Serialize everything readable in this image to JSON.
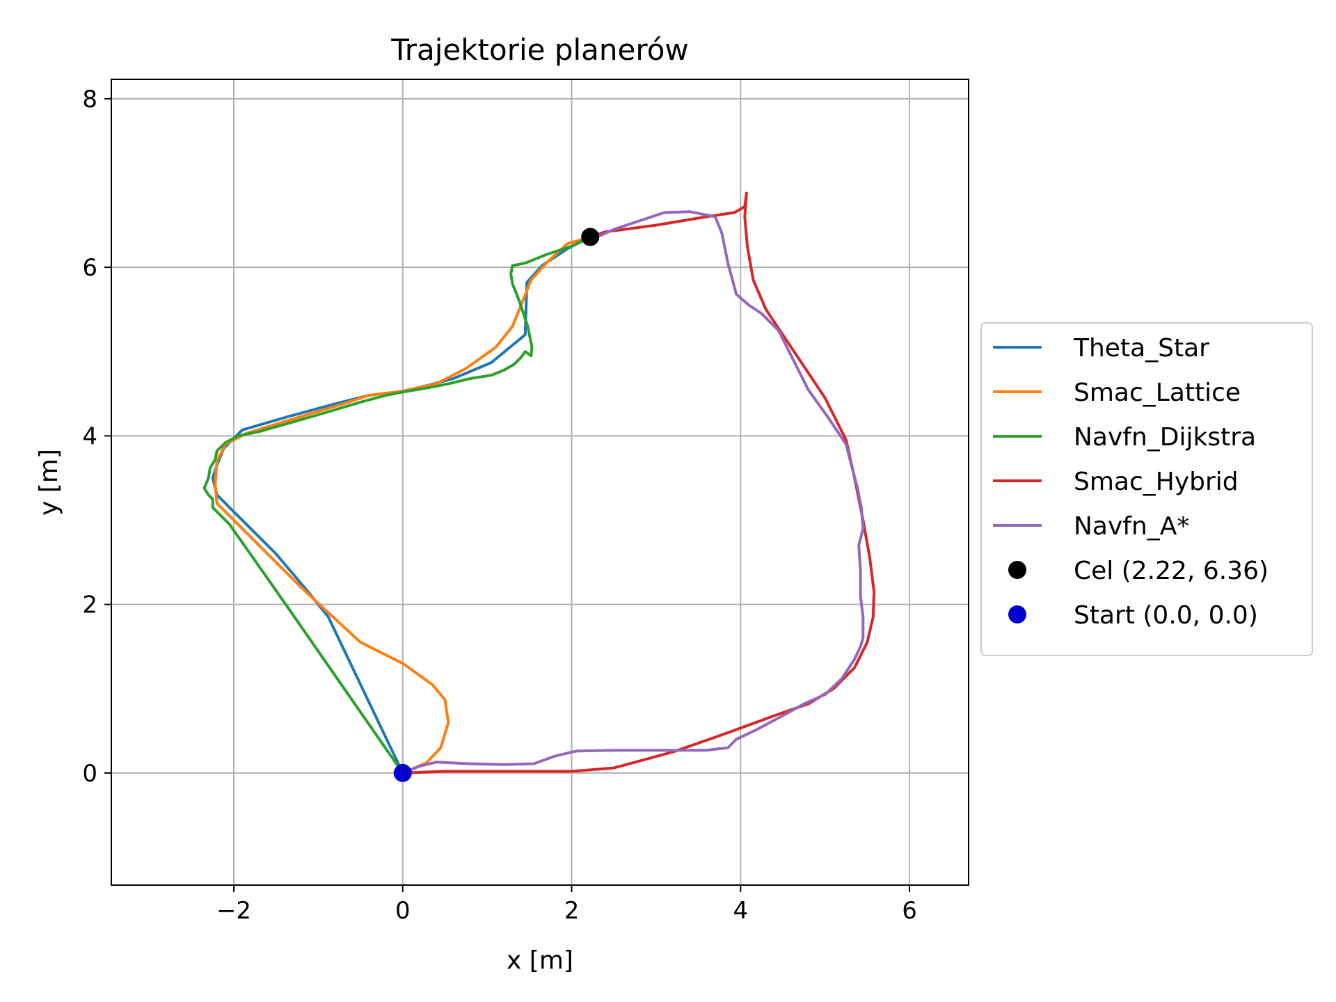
{
  "chart_data": {
    "type": "line",
    "title": "Trajektorie planerów",
    "xlabel": "x [m]",
    "ylabel": "y [m]",
    "xlim": [
      -3.45,
      6.7
    ],
    "ylim": [
      -1.33,
      8.23
    ],
    "xticks": [
      -2,
      0,
      2,
      4,
      6
    ],
    "yticks": [
      0,
      2,
      4,
      6,
      8
    ],
    "xtick_labels": [
      "−2",
      "0",
      "2",
      "4",
      "6"
    ],
    "ytick_labels": [
      "0",
      "2",
      "4",
      "6",
      "8"
    ],
    "grid": true,
    "legend_position": "outside-right",
    "series": [
      {
        "name": "Theta_Star",
        "color": "#1f77b4",
        "points": [
          [
            0.0,
            0.0
          ],
          [
            -0.88,
            1.85
          ],
          [
            -1.12,
            2.15
          ],
          [
            -1.5,
            2.6
          ],
          [
            -2.2,
            3.3
          ],
          [
            -2.25,
            3.5
          ],
          [
            -2.2,
            3.65
          ],
          [
            -2.12,
            3.85
          ],
          [
            -1.9,
            4.07
          ],
          [
            -1.35,
            4.23
          ],
          [
            -0.8,
            4.38
          ],
          [
            -0.4,
            4.48
          ],
          [
            0.0,
            4.53
          ],
          [
            0.3,
            4.6
          ],
          [
            0.6,
            4.68
          ],
          [
            1.05,
            4.87
          ],
          [
            1.45,
            5.2
          ],
          [
            1.47,
            5.82
          ],
          [
            1.65,
            6.02
          ],
          [
            1.95,
            6.22
          ],
          [
            2.22,
            6.36
          ]
        ]
      },
      {
        "name": "Smac_Lattice",
        "color": "#ff7f0e",
        "points": [
          [
            0.0,
            0.0
          ],
          [
            0.28,
            0.12
          ],
          [
            0.45,
            0.3
          ],
          [
            0.54,
            0.6
          ],
          [
            0.5,
            0.87
          ],
          [
            0.35,
            1.05
          ],
          [
            0.0,
            1.3
          ],
          [
            -0.5,
            1.55
          ],
          [
            -0.9,
            1.92
          ],
          [
            -1.2,
            2.2
          ],
          [
            -1.75,
            2.75
          ],
          [
            -2.2,
            3.2
          ],
          [
            -2.22,
            3.42
          ],
          [
            -2.2,
            3.7
          ],
          [
            -2.1,
            3.9
          ],
          [
            -1.85,
            4.03
          ],
          [
            -1.3,
            4.2
          ],
          [
            -0.8,
            4.35
          ],
          [
            -0.4,
            4.48
          ],
          [
            0.0,
            4.53
          ],
          [
            0.4,
            4.62
          ],
          [
            0.75,
            4.8
          ],
          [
            1.1,
            5.05
          ],
          [
            1.3,
            5.3
          ],
          [
            1.42,
            5.6
          ],
          [
            1.52,
            5.85
          ],
          [
            1.7,
            6.05
          ],
          [
            1.95,
            6.28
          ],
          [
            2.22,
            6.36
          ]
        ]
      },
      {
        "name": "Navfn_Dijkstra",
        "color": "#2ca02c",
        "points": [
          [
            0.0,
            0.0
          ],
          [
            -1.35,
            1.95
          ],
          [
            -2.05,
            2.95
          ],
          [
            -2.2,
            3.1
          ],
          [
            -2.25,
            3.15
          ],
          [
            -2.25,
            3.25
          ],
          [
            -2.3,
            3.3
          ],
          [
            -2.35,
            3.38
          ],
          [
            -2.3,
            3.5
          ],
          [
            -2.28,
            3.62
          ],
          [
            -2.22,
            3.72
          ],
          [
            -2.2,
            3.82
          ],
          [
            -2.1,
            3.92
          ],
          [
            -1.95,
            4.0
          ],
          [
            -1.7,
            4.05
          ],
          [
            -1.35,
            4.15
          ],
          [
            -0.9,
            4.28
          ],
          [
            -0.5,
            4.4
          ],
          [
            -0.2,
            4.48
          ],
          [
            0.0,
            4.52
          ],
          [
            0.3,
            4.57
          ],
          [
            0.55,
            4.62
          ],
          [
            0.8,
            4.68
          ],
          [
            1.05,
            4.72
          ],
          [
            1.2,
            4.78
          ],
          [
            1.32,
            4.85
          ],
          [
            1.4,
            4.93
          ],
          [
            1.45,
            5.0
          ],
          [
            1.52,
            4.95
          ],
          [
            1.53,
            5.05
          ],
          [
            1.48,
            5.3
          ],
          [
            1.38,
            5.6
          ],
          [
            1.3,
            5.8
          ],
          [
            1.28,
            5.92
          ],
          [
            1.3,
            6.02
          ],
          [
            1.45,
            6.05
          ],
          [
            1.7,
            6.15
          ],
          [
            2.0,
            6.25
          ],
          [
            2.22,
            6.36
          ]
        ]
      },
      {
        "name": "Smac_Hybrid",
        "color": "#d62728",
        "points": [
          [
            0.0,
            0.0
          ],
          [
            0.5,
            0.02
          ],
          [
            2.0,
            0.02
          ],
          [
            2.5,
            0.06
          ],
          [
            3.2,
            0.25
          ],
          [
            3.8,
            0.46
          ],
          [
            4.4,
            0.68
          ],
          [
            4.8,
            0.82
          ],
          [
            5.1,
            1.0
          ],
          [
            5.35,
            1.25
          ],
          [
            5.5,
            1.55
          ],
          [
            5.57,
            1.85
          ],
          [
            5.58,
            2.15
          ],
          [
            5.53,
            2.55
          ],
          [
            5.45,
            3.0
          ],
          [
            5.35,
            3.5
          ],
          [
            5.25,
            3.95
          ],
          [
            5.0,
            4.45
          ],
          [
            4.6,
            5.05
          ],
          [
            4.3,
            5.5
          ],
          [
            4.15,
            5.85
          ],
          [
            4.08,
            6.25
          ],
          [
            4.05,
            6.6
          ],
          [
            4.07,
            6.88
          ],
          [
            4.05,
            6.72
          ],
          [
            3.93,
            6.65
          ],
          [
            3.6,
            6.6
          ],
          [
            3.0,
            6.5
          ],
          [
            2.4,
            6.42
          ],
          [
            2.22,
            6.36
          ]
        ]
      },
      {
        "name": "Navfn_A*",
        "color": "#9467bd",
        "points": [
          [
            0.0,
            0.0
          ],
          [
            0.2,
            0.08
          ],
          [
            0.4,
            0.13
          ],
          [
            0.8,
            0.11
          ],
          [
            1.2,
            0.1
          ],
          [
            1.55,
            0.11
          ],
          [
            1.8,
            0.2
          ],
          [
            2.05,
            0.26
          ],
          [
            2.5,
            0.27
          ],
          [
            3.2,
            0.27
          ],
          [
            3.6,
            0.27
          ],
          [
            3.85,
            0.3
          ],
          [
            3.95,
            0.4
          ],
          [
            4.2,
            0.52
          ],
          [
            4.5,
            0.68
          ],
          [
            4.75,
            0.82
          ],
          [
            5.0,
            0.93
          ],
          [
            5.2,
            1.12
          ],
          [
            5.35,
            1.35
          ],
          [
            5.42,
            1.5
          ],
          [
            5.45,
            1.6
          ],
          [
            5.45,
            1.85
          ],
          [
            5.42,
            2.1
          ],
          [
            5.42,
            2.4
          ],
          [
            5.4,
            2.7
          ],
          [
            5.45,
            2.9
          ],
          [
            5.43,
            3.15
          ],
          [
            5.38,
            3.4
          ],
          [
            5.3,
            3.7
          ],
          [
            5.25,
            3.9
          ],
          [
            5.05,
            4.2
          ],
          [
            4.8,
            4.55
          ],
          [
            4.6,
            4.95
          ],
          [
            4.45,
            5.25
          ],
          [
            4.25,
            5.45
          ],
          [
            4.1,
            5.55
          ],
          [
            3.95,
            5.68
          ],
          [
            3.85,
            6.05
          ],
          [
            3.78,
            6.4
          ],
          [
            3.7,
            6.6
          ],
          [
            3.4,
            6.66
          ],
          [
            3.1,
            6.65
          ],
          [
            2.8,
            6.55
          ],
          [
            2.5,
            6.45
          ],
          [
            2.35,
            6.38
          ],
          [
            2.22,
            6.36
          ]
        ]
      }
    ],
    "markers": [
      {
        "name": "Cel (2.22, 6.36)",
        "color": "#000000",
        "x": 2.22,
        "y": 6.36
      },
      {
        "name": "Start (0.0, 0.0)",
        "color": "#0000cc",
        "x": 0.0,
        "y": 0.0
      }
    ]
  }
}
